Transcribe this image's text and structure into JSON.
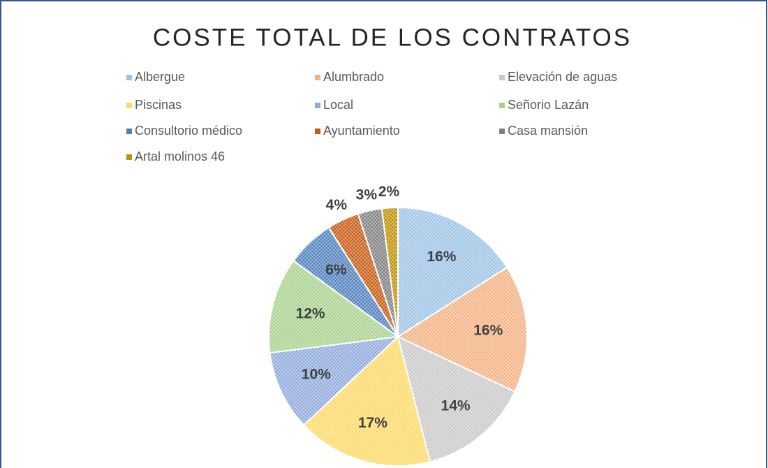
{
  "chart_data": {
    "type": "pie",
    "title": "COSTE TOTAL DE LOS CONTRATOS",
    "categories": [
      "Albergue",
      "Alumbrado",
      "Elevación de aguas",
      "Piscinas",
      "Local",
      "Señorio Lazán",
      "Consultorio médico",
      "Ayuntamiento",
      "Casa mansión",
      "Artal molinos 46"
    ],
    "values": [
      16,
      16,
      14,
      17,
      10,
      12,
      6,
      4,
      3,
      2
    ],
    "value_labels": [
      "16%",
      "16%",
      "14%",
      "17%",
      "10%",
      "12%",
      "6%",
      "4%",
      "3%",
      "2%"
    ],
    "colors": [
      "#9dc3e6",
      "#f4b183",
      "#c9c9c9",
      "#ffd966",
      "#8faadc",
      "#a9d18e",
      "#4f81bd",
      "#c55a11",
      "#7f7f7f",
      "#bf9000"
    ],
    "legend": "top"
  }
}
